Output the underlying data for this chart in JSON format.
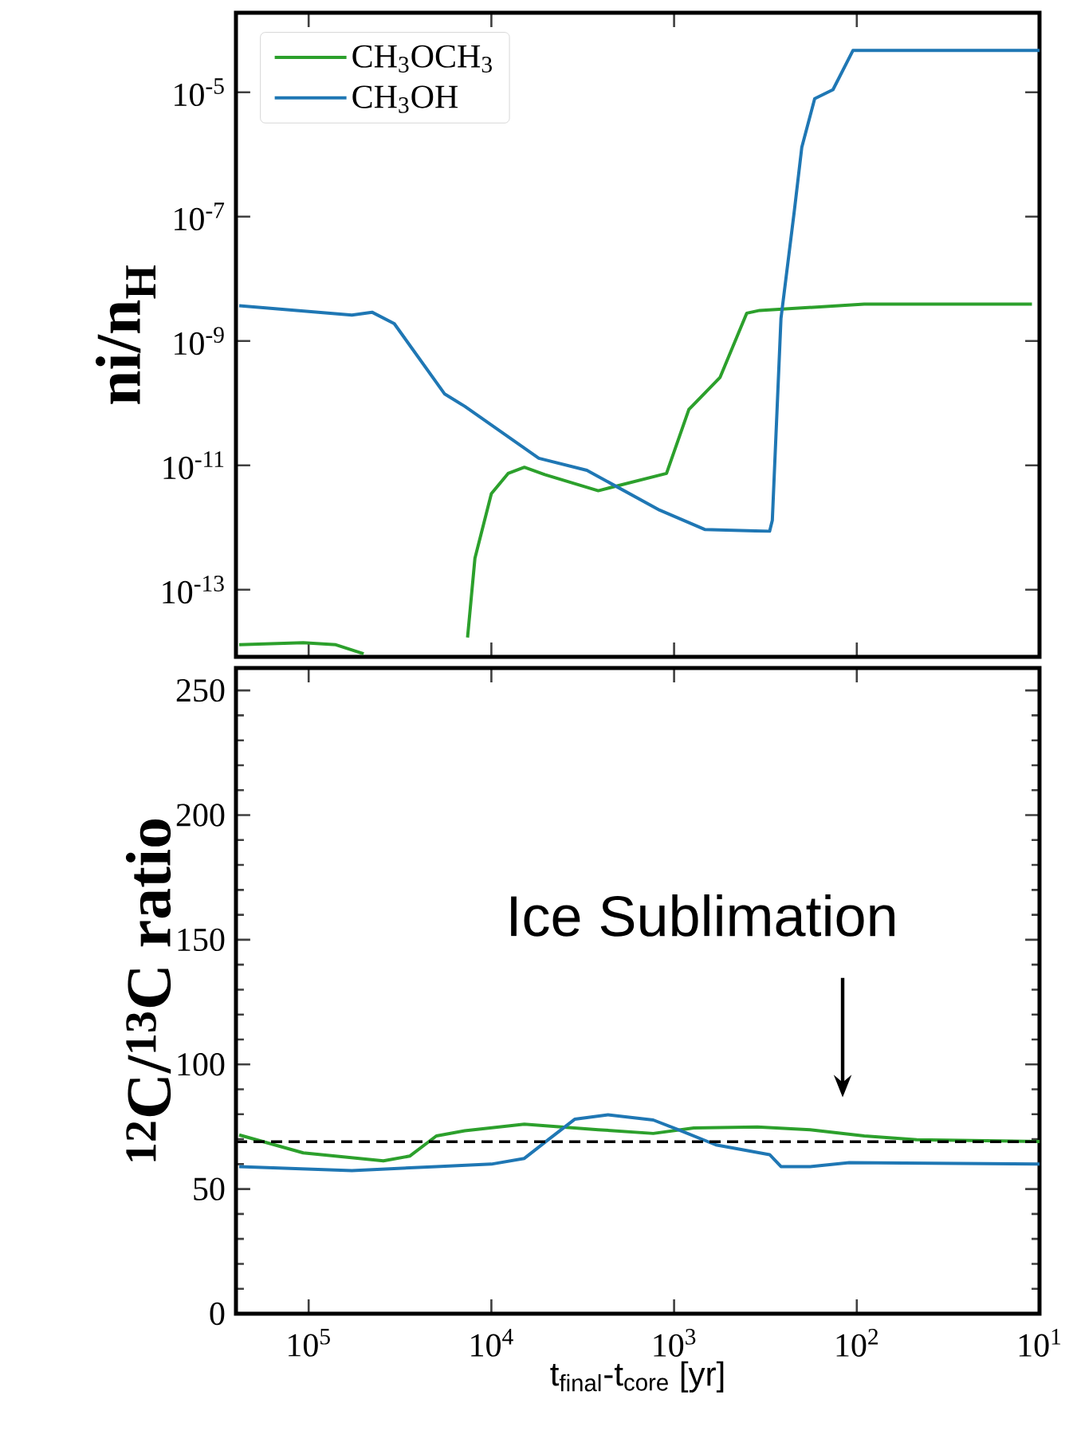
{
  "chart_data": [
    {
      "type": "line",
      "ylabel": "ni/n$_{H}$",
      "log": "xy",
      "xlim": [
        250000,
        10
      ],
      "ylim": [
        8.3e-15,
        0.00019
      ],
      "xticks": [
        {
          "value": 100000,
          "label": null
        },
        {
          "value": 10000,
          "label": null
        },
        {
          "value": 1000,
          "label": null
        },
        {
          "value": 100,
          "label": null
        }
      ],
      "yticks": [
        {
          "value": 1e-05,
          "label": "10$^{-5}$"
        },
        {
          "value": 1e-07,
          "label": "10$^{-7}$"
        },
        {
          "value": 1e-09,
          "label": "10$^{-9}$"
        },
        {
          "value": 1e-11,
          "label": "10$^{-11}$"
        },
        {
          "value": 1e-13,
          "label": "10$^{-13}$"
        }
      ],
      "tick_labels": "y",
      "legend": "top left",
      "series": [
        {
          "name": "CH$_{3}$OCH$_{3}$",
          "color": "#2ca02c",
          "x": [
            240000,
            107000,
            71000,
            50000,
            30000,
            13500,
            12300,
            10000,
            8100,
            6600,
            5100,
            2600,
            1100,
            830,
            560,
            400,
            340,
            91,
            11
          ],
          "values": [
            1.3e-14,
            1.4e-14,
            1.3e-14,
            9.3e-15,
            null,
            1.7e-14,
            3.2e-13,
            3.5e-12,
            7.4e-12,
            9.3e-12,
            7.1e-12,
            3.9e-12,
            7.4e-12,
            7.9e-11,
            2.6e-10,
            2.8e-09,
            3.1e-09,
            3.9e-09,
            3.9e-09
          ]
        },
        {
          "name": "CH$_{3}$OH",
          "color": "#1f77b4",
          "x": [
            240000,
            58000,
            45000,
            34000,
            18000,
            14000,
            5500,
            3000,
            1200,
            680,
            300,
            290,
            260,
            220,
            200,
            170,
            135,
            105,
            10
          ],
          "values": [
            3.7e-09,
            2.6e-09,
            2.9e-09,
            1.9e-09,
            1.4e-10,
            8.9e-11,
            1.3e-11,
            8.3e-12,
            1.9e-12,
            9.3e-13,
            8.7e-13,
            1.3e-12,
            2.3e-09,
            1.2e-07,
            1.3e-06,
            7.9e-06,
            1.1e-05,
            4.7e-05,
            4.7e-05
          ]
        }
      ]
    },
    {
      "type": "line",
      "ylabel": "$^{12}$C/$^{13}$C ratio",
      "xlabel": "t$_{final}$-t$_{core}$ [yr]",
      "log": "x",
      "xlim": [
        250000,
        10
      ],
      "ylim": [
        0,
        259
      ],
      "xticks": [
        {
          "value": 100000,
          "label": "10$^{5}$"
        },
        {
          "value": 10000,
          "label": "10$^{4}$"
        },
        {
          "value": 1000,
          "label": "10$^{3}$"
        },
        {
          "value": 100,
          "label": "10$^{2}$"
        },
        {
          "value": 10,
          "label": "10$^{1}$"
        }
      ],
      "yticks": [
        0,
        50,
        100,
        150,
        200,
        250
      ],
      "ref_lines": [
        {
          "axis": "y",
          "value": 69,
          "color": "#000000",
          "line_style": "dashed"
        }
      ],
      "annotations": [
        "Ice Sublimation"
      ],
      "series": [
        {
          "color": "#2ca02c",
          "x": [
            240000,
            107000,
            39000,
            28000,
            20000,
            14000,
            6600,
            2600,
            1300,
            780,
            350,
            180,
            91,
            47,
            10
          ],
          "values": [
            71.7,
            64.5,
            61.3,
            63.2,
            71.3,
            73.4,
            76,
            73.8,
            72.3,
            74.5,
            74.9,
            73.8,
            71.3,
            69.8,
            69.1
          ]
        },
        {
          "color": "#1f77b4",
          "x": [
            240000,
            58000,
            20000,
            10000,
            6600,
            4800,
            3500,
            2300,
            1300,
            950,
            590,
            300,
            260,
            180,
            110,
            10
          ],
          "values": [
            59,
            57.4,
            59,
            60,
            62.3,
            70.2,
            78,
            79.8,
            77.7,
            73.8,
            67.7,
            63.8,
            59,
            59,
            60.6,
            60
          ]
        }
      ]
    }
  ]
}
